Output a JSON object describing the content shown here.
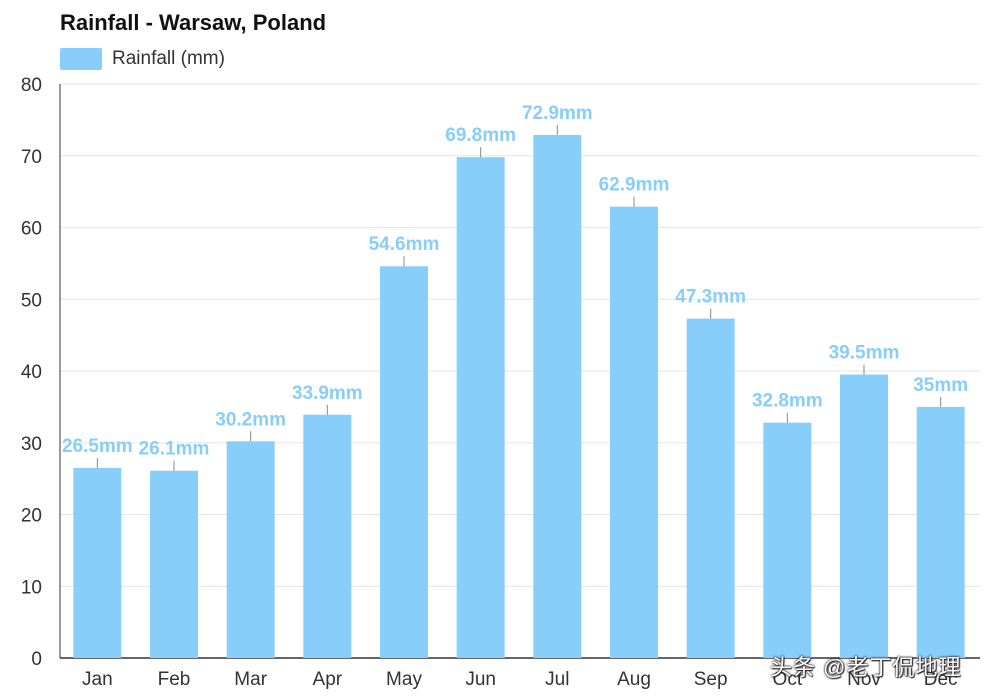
{
  "chart_data": {
    "type": "bar",
    "title": "Rainfall - Warsaw, Poland",
    "legend": {
      "label": "Rainfall (mm)",
      "position": "top-left"
    },
    "categories": [
      "Jan",
      "Feb",
      "Mar",
      "Apr",
      "May",
      "Jun",
      "Jul",
      "Aug",
      "Sep",
      "Oct",
      "Nov",
      "Dec"
    ],
    "values": [
      26.5,
      26.1,
      30.2,
      33.9,
      54.6,
      69.8,
      72.9,
      62.9,
      47.3,
      32.8,
      39.5,
      35
    ],
    "value_labels": [
      "26.5mm",
      "26.1mm",
      "30.2mm",
      "33.9mm",
      "54.6mm",
      "69.8mm",
      "72.9mm",
      "62.9mm",
      "47.3mm",
      "32.8mm",
      "39.5mm",
      "35mm"
    ],
    "y_ticks": [
      0,
      10,
      20,
      30,
      40,
      50,
      60,
      70,
      80
    ],
    "ylim": [
      0,
      80
    ],
    "grid": true,
    "xlabel": "",
    "ylabel": ""
  },
  "colors": {
    "bar": "#87cefa",
    "label": "#87cefa",
    "grid": "#e6e6e6",
    "axis": "#333333",
    "connector": "#888888"
  },
  "watermark": "头条 @老丁侃地理"
}
